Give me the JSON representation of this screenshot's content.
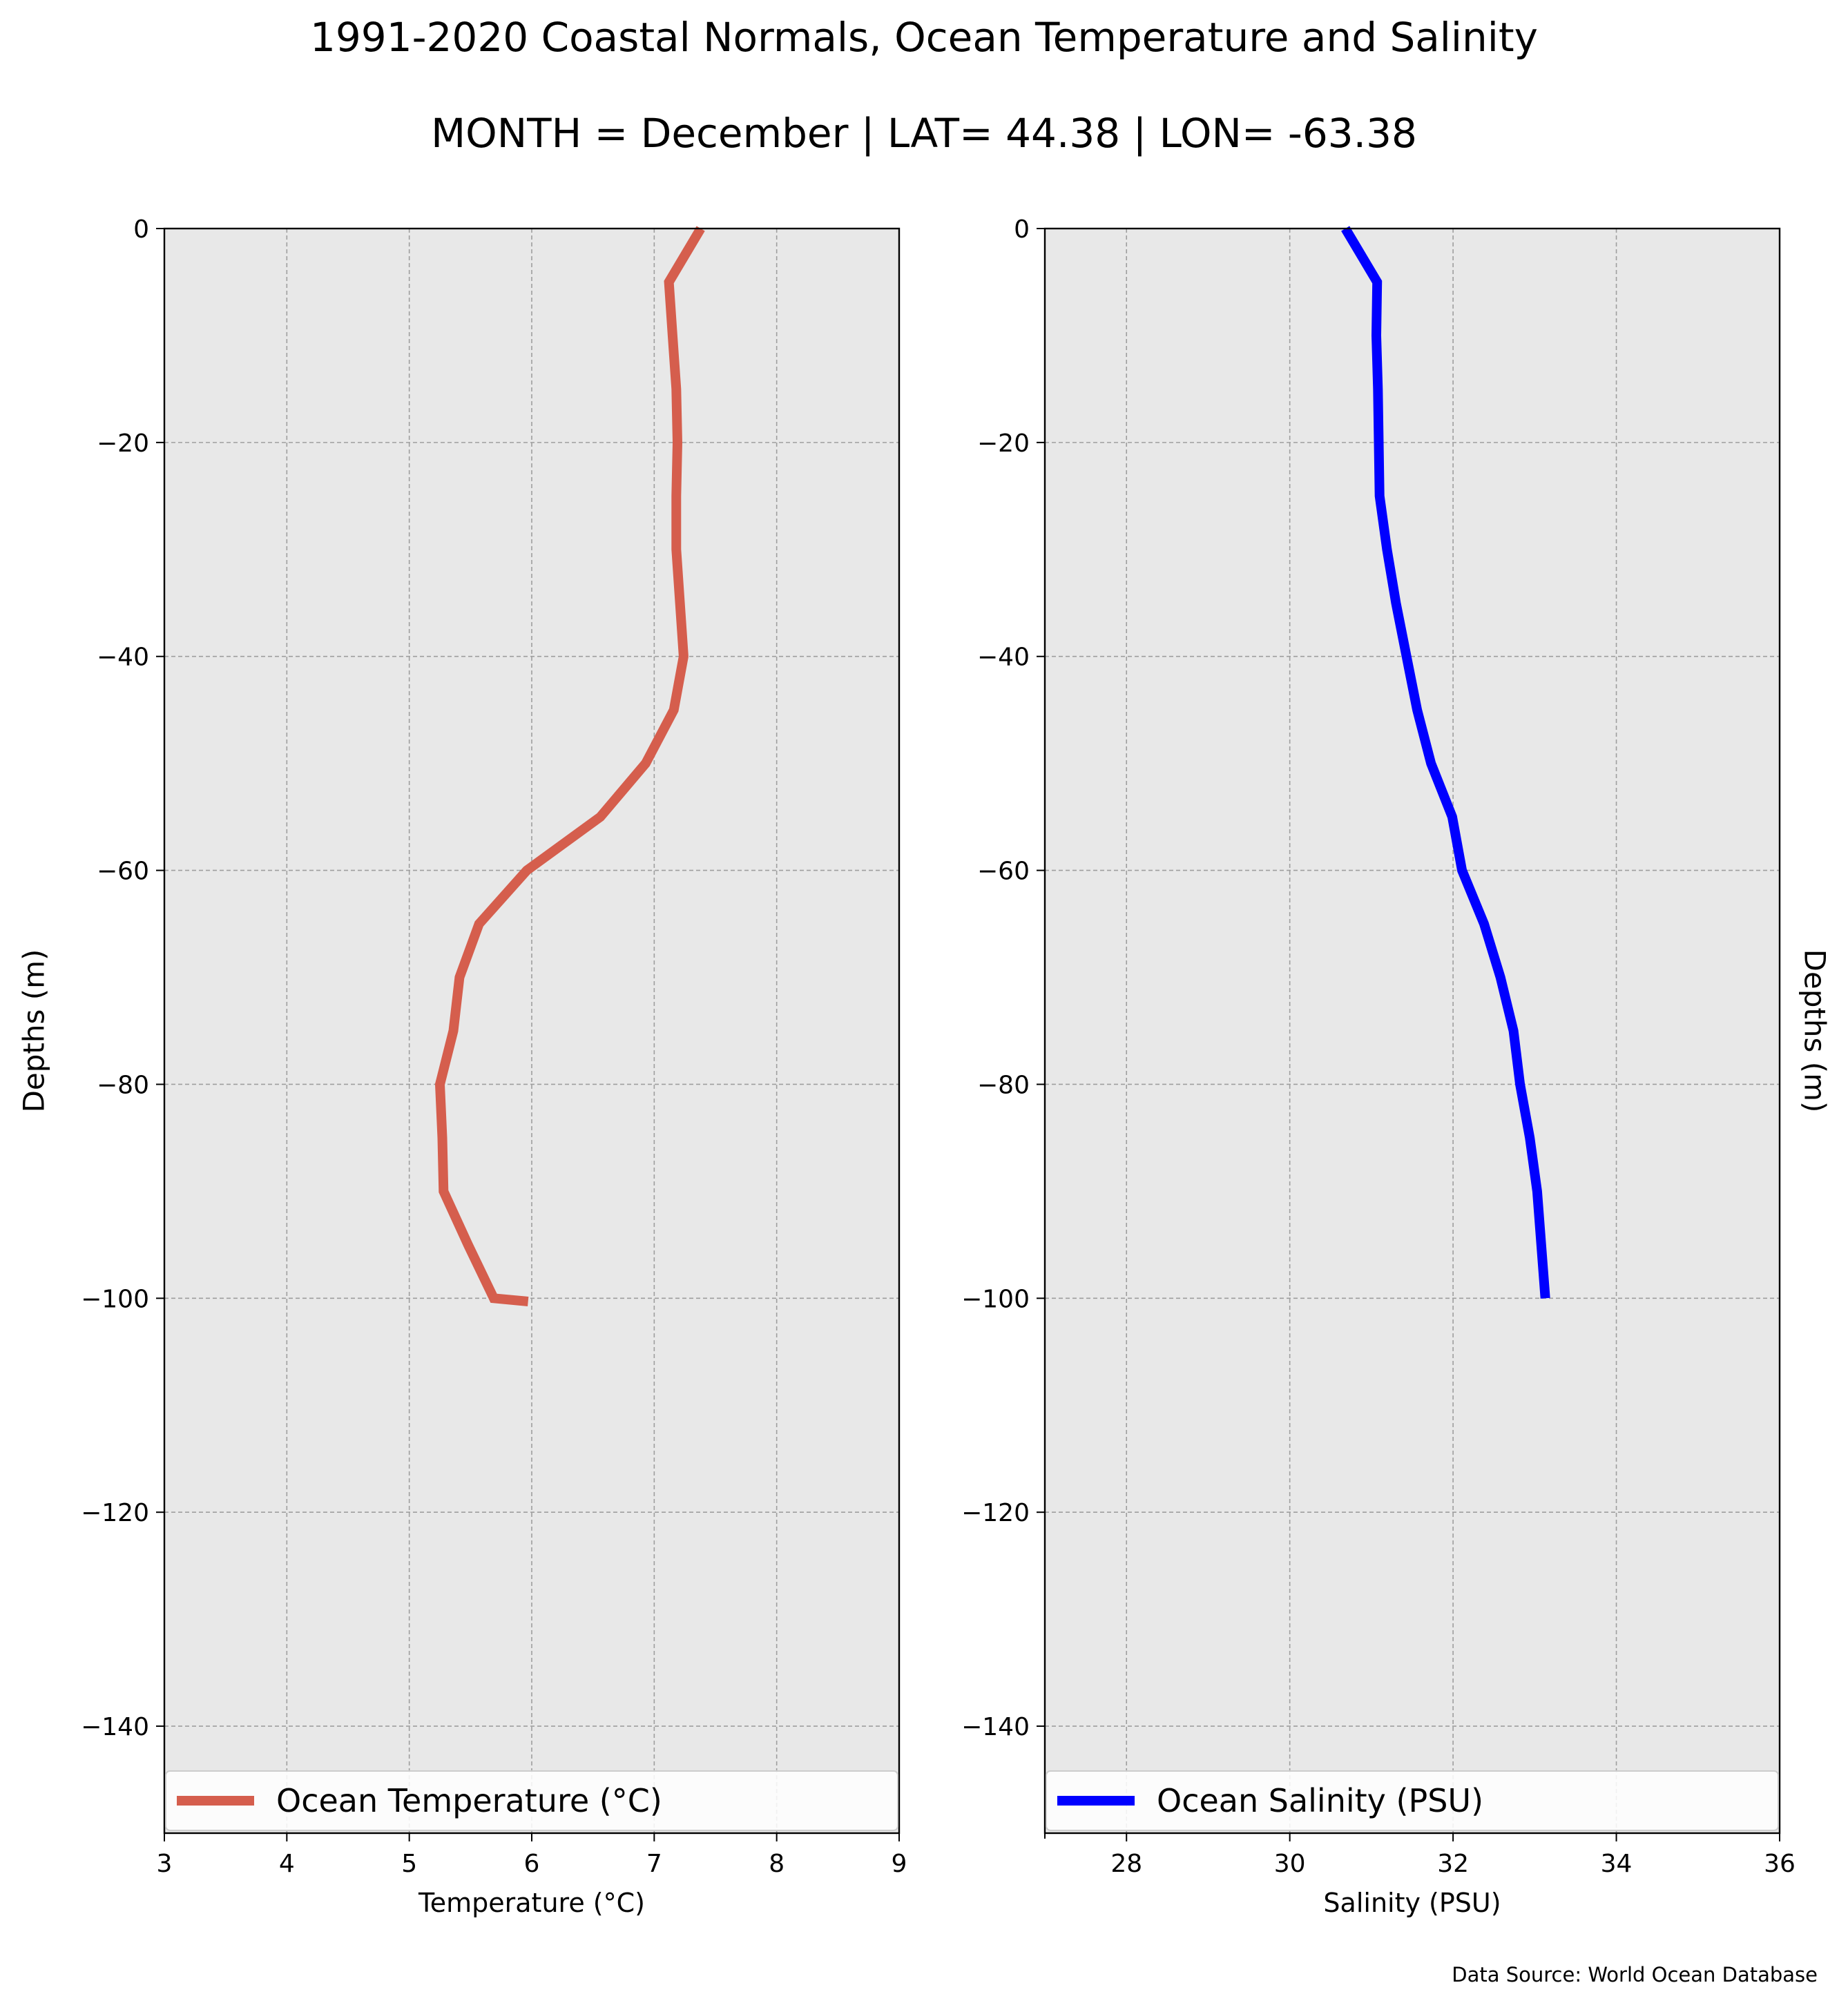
{
  "figure": {
    "title_line1": "1991-2020 Coastal Normals, Ocean Temperature and Salinity",
    "title_line2": "MONTH = December | LAT= 44.38 | LON= -63.38",
    "source": "Data Source: World Ocean Database",
    "background": "#ffffff",
    "plot_background": "#e8e8e8",
    "grid_color": "#9e9e9e"
  },
  "chart_data": [
    {
      "type": "line",
      "xlabel": "Temperature ($^\\circ$C)",
      "xlabel_display": "Temperature (°C)",
      "ylabel": "Depths (m)",
      "xlim": [
        3,
        9
      ],
      "ylim": [
        -150,
        0
      ],
      "xticks": [
        "3",
        "4",
        "5",
        "6",
        "7",
        "8",
        "9"
      ],
      "yticks": [
        "0",
        "−20",
        "−40",
        "−60",
        "−80",
        "−100",
        "−120",
        "−140"
      ],
      "ytick_values": [
        0,
        -20,
        -40,
        -60,
        -80,
        -100,
        -120,
        -140
      ],
      "xtick_values": [
        3,
        4,
        5,
        6,
        7,
        8,
        9
      ],
      "grid": true,
      "legend_placement": "lower-center",
      "series": [
        {
          "name": "Ocean Temperature (°C)",
          "color": "#d55e4d",
          "x": [
            7.38,
            7.12,
            7.15,
            7.18,
            7.19,
            7.18,
            7.18,
            7.21,
            7.24,
            7.16,
            6.93,
            6.56,
            5.96,
            5.57,
            5.41,
            5.36,
            5.25,
            5.27,
            5.28,
            5.48,
            5.69,
            5.97
          ],
          "y": [
            0,
            -5,
            -10,
            -15,
            -20,
            -25,
            -30,
            -35,
            -40,
            -45,
            -50,
            -55,
            -60,
            -65,
            -70,
            -75,
            -80,
            -85,
            -90,
            -95,
            -100,
            -100.3
          ]
        }
      ]
    },
    {
      "type": "line",
      "xlabel": "Salinity (PSU)",
      "ylabel": "Depths (m)",
      "xlim": [
        27,
        36
      ],
      "ylim": [
        -150,
        0
      ],
      "xticks": [
        "28",
        "30",
        "32",
        "34",
        "36"
      ],
      "xtick_values": [
        28,
        30,
        32,
        34,
        36
      ],
      "yticks": [
        "0",
        "−20",
        "−40",
        "−60",
        "−80",
        "−100",
        "−120",
        "−140"
      ],
      "ytick_values": [
        0,
        -20,
        -40,
        -60,
        -80,
        -100,
        -120,
        -140
      ],
      "grid": true,
      "legend_placement": "lower-center",
      "series": [
        {
          "name": "Ocean Salinity (PSU)",
          "color": "#0000ff",
          "x": [
            30.68,
            31.07,
            31.06,
            31.08,
            31.09,
            31.1,
            31.19,
            31.3,
            31.43,
            31.56,
            31.73,
            31.99,
            32.11,
            32.38,
            32.58,
            32.74,
            32.82,
            32.94,
            33.03,
            33.08,
            33.13
          ],
          "y": [
            0,
            -5,
            -10,
            -15,
            -20,
            -25,
            -30,
            -35,
            -40,
            -45,
            -50,
            -55,
            -60,
            -65,
            -70,
            -75,
            -80,
            -85,
            -90,
            -95,
            -100
          ]
        }
      ]
    }
  ]
}
